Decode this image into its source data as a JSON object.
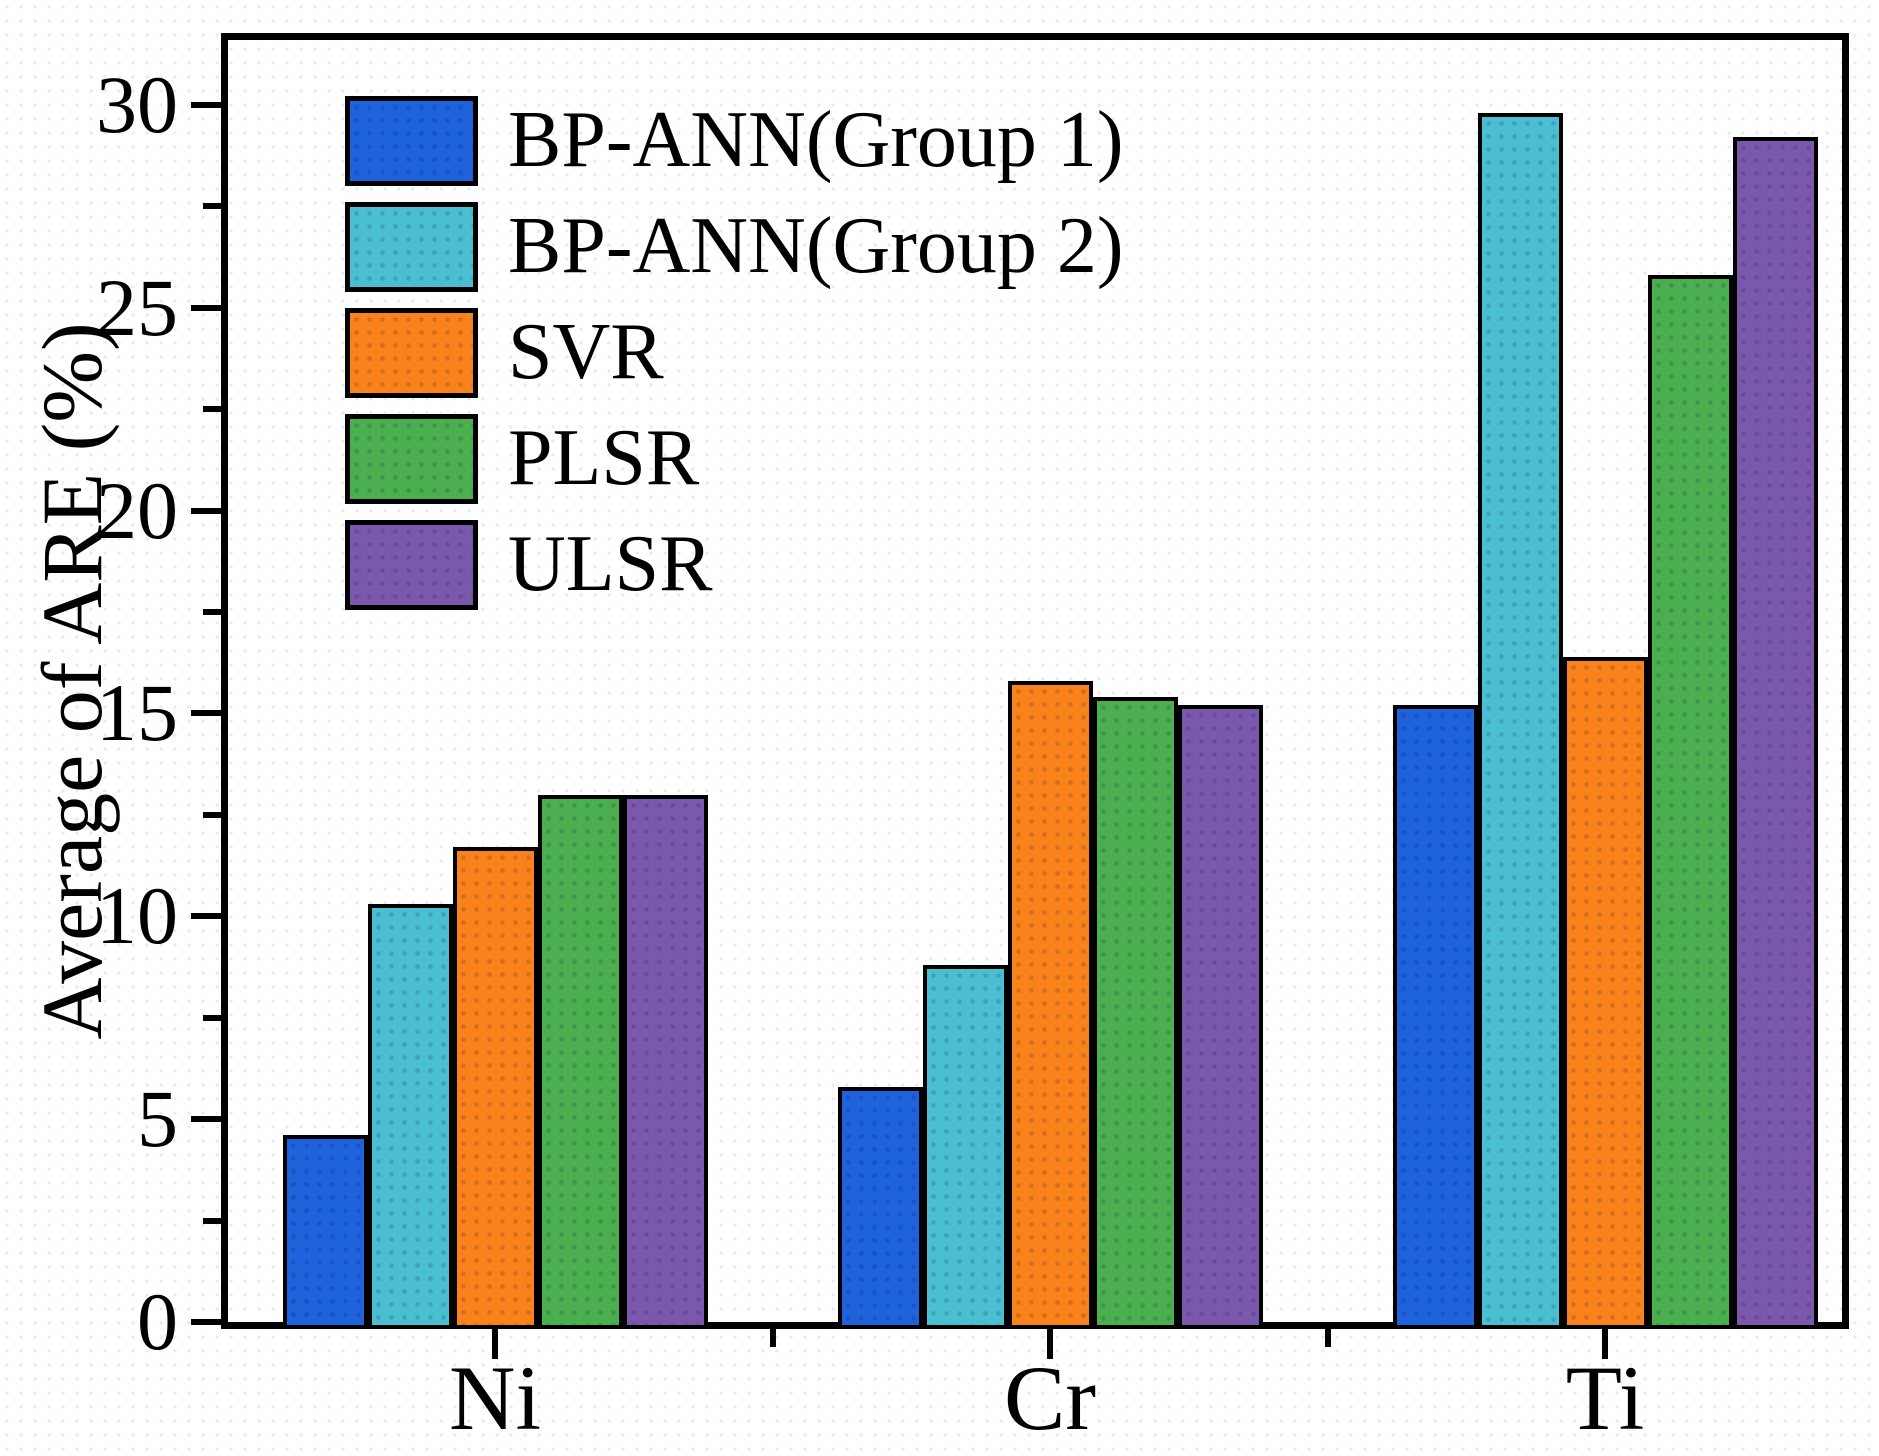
{
  "figure": {
    "frame_color": "#000000",
    "background_color": "#ffffff",
    "texture_dot_color": "#a0b0d5"
  },
  "chart_data": {
    "type": "bar",
    "title": "",
    "xlabel": "",
    "ylabel": "Average of ARE (%)",
    "categories": [
      "Ni",
      "Cr",
      "Ti"
    ],
    "series": [
      {
        "name": "BP-ANN(Group 1)",
        "color": "#1E63DB",
        "values": [
          4.6,
          5.8,
          15.2
        ]
      },
      {
        "name": "BP-ANN(Group 2)",
        "color": "#4ABFD1",
        "values": [
          10.3,
          8.8,
          29.8
        ]
      },
      {
        "name": "SVR",
        "color": "#F9821A",
        "values": [
          11.7,
          15.8,
          16.4
        ]
      },
      {
        "name": "PLSR",
        "color": "#4BAE4F",
        "values": [
          13.0,
          15.4,
          25.8
        ]
      },
      {
        "name": "ULSR",
        "color": "#7A58AB",
        "values": [
          13.0,
          15.2,
          29.2
        ]
      }
    ],
    "ylim": [
      0,
      31.6
    ],
    "yticks": [
      0,
      5,
      10,
      15,
      20,
      25,
      30
    ],
    "yticks_minor": [
      2.5,
      7.5,
      12.5,
      17.5,
      22.5,
      27.5
    ],
    "grid": false,
    "legend_position": "top-left",
    "legend_entries": [
      "BP-ANN(Group 1)",
      "BP-ANN(Group 2)",
      "SVR",
      "PLSR",
      "ULSR"
    ]
  }
}
